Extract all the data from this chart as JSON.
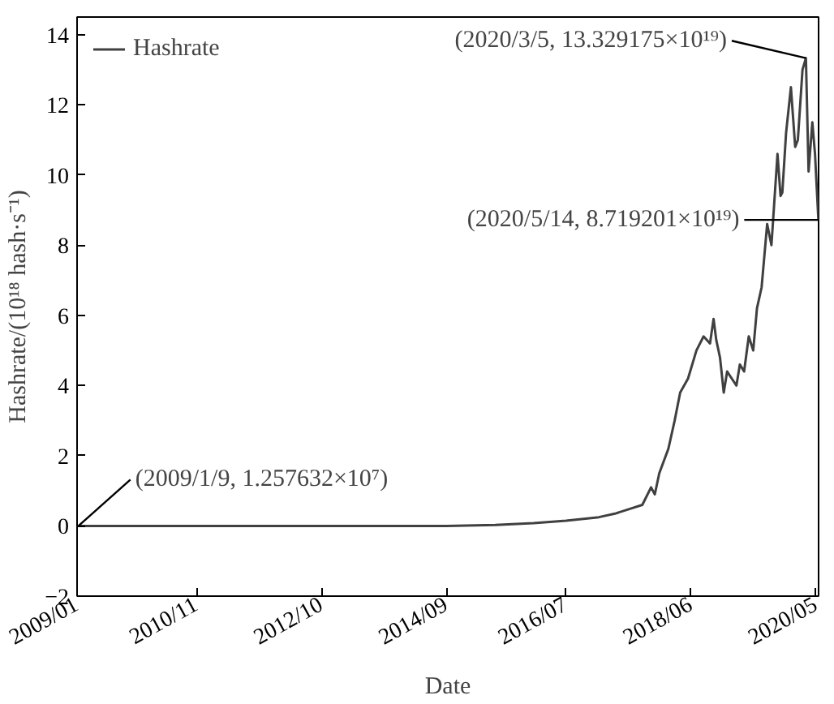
{
  "chart_data": {
    "type": "line",
    "xlabel": "Date",
    "ylabel": "Hashrate/(10¹⁸ hash·s⁻¹)",
    "x": [
      "2009-01-09",
      "2010-06-01",
      "2011-06-01",
      "2012-06-01",
      "2013-06-01",
      "2014-03-01",
      "2014-09-01",
      "2015-06-01",
      "2016-01-01",
      "2016-07-01",
      "2017-01-01",
      "2017-04-01",
      "2017-07-01",
      "2017-09-01",
      "2017-10-20",
      "2017-11-10",
      "2017-12-05",
      "2018-01-25",
      "2018-03-01",
      "2018-04-01",
      "2018-05-15",
      "2018-07-01",
      "2018-08-10",
      "2018-09-15",
      "2018-10-05",
      "2018-10-20",
      "2018-11-10",
      "2018-12-01",
      "2018-12-20",
      "2019-01-15",
      "2019-02-10",
      "2019-03-01",
      "2019-03-25",
      "2019-04-20",
      "2019-05-15",
      "2019-06-05",
      "2019-07-01",
      "2019-08-01",
      "2019-08-25",
      "2019-09-28",
      "2019-10-15",
      "2019-10-25",
      "2019-11-15",
      "2019-12-12",
      "2020-01-05",
      "2020-01-20",
      "2020-02-15",
      "2020-03-05",
      "2020-03-20",
      "2020-04-10",
      "2020-04-25",
      "2020-05-01",
      "2020-05-14"
    ],
    "series": [
      {
        "name": "Hashrate",
        "color": "#404040",
        "values": [
          0,
          0,
          0,
          0,
          0,
          0,
          0,
          0.03,
          0.08,
          0.15,
          0.25,
          0.35,
          0.5,
          0.6,
          1.1,
          0.9,
          1.5,
          2.2,
          3.0,
          3.8,
          4.2,
          5.0,
          5.4,
          5.2,
          5.9,
          5.3,
          4.8,
          3.8,
          4.4,
          4.2,
          4.0,
          4.6,
          4.4,
          5.4,
          5.0,
          6.2,
          6.8,
          8.6,
          8.0,
          10.6,
          9.4,
          9.5,
          11.2,
          12.5,
          10.8,
          11.0,
          13.0,
          13.33,
          10.1,
          11.5,
          10.6,
          10.0,
          8.72
        ]
      }
    ],
    "xlim": [
      "2009-01-01",
      "2020-05-15"
    ],
    "xticks": [
      {
        "value": "2009-01-01",
        "label": "2009/01"
      },
      {
        "value": "2010-11-01",
        "label": "2010/11"
      },
      {
        "value": "2012-10-01",
        "label": "2012/10"
      },
      {
        "value": "2014-09-01",
        "label": "2014/09"
      },
      {
        "value": "2016-07-01",
        "label": "2016/07"
      },
      {
        "value": "2018-06-01",
        "label": "2018/06"
      },
      {
        "value": "2020-05-01",
        "label": "2020/05"
      }
    ],
    "ylim": [
      -2,
      14.5
    ],
    "yticks": [
      -2,
      0,
      2,
      4,
      6,
      8,
      10,
      12,
      14
    ],
    "annotations": [
      {
        "text": "(2009/1/9, 1.257632×10⁷)",
        "x": "2009-01-09",
        "y": 0
      },
      {
        "text": "(2020/3/5, 13.329175×10¹⁹)",
        "x": "2020-03-05",
        "y": 13.33
      },
      {
        "text": "(2020/5/14, 8.719201×10¹⁹)",
        "x": "2020-05-14",
        "y": 8.72
      }
    ],
    "legend": "top left",
    "grid": false
  }
}
